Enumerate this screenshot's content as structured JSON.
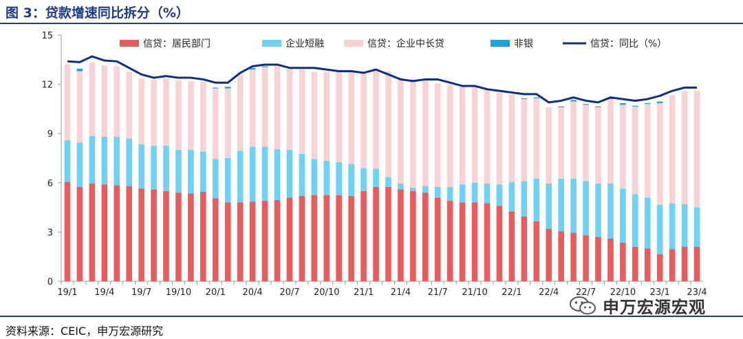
{
  "title": "图 3：贷款增速同比拆分（%）",
  "source": "资料来源：CEIC，申万宏源研究",
  "watermark": "申万宏源宏观",
  "colors": {
    "residential": "#e85c5c",
    "corporate_short": "#6dd2f5",
    "corporate_medium_long": "#f9d3d3",
    "non_bank": "#1aa3e0",
    "yoy_line": "#0b2e8a",
    "brand": "#1b3a8c"
  },
  "chart_data": {
    "type": "bar",
    "stacked": true,
    "title": "贷款增速同比拆分（%）",
    "ylim": [
      0,
      15
    ],
    "yticks": [
      0,
      3,
      6,
      9,
      12,
      15
    ],
    "legend_position": "top",
    "x_tick_labels": [
      "19/1",
      "19/4",
      "19/7",
      "19/10",
      "20/1",
      "20/4",
      "20/7",
      "20/10",
      "21/1",
      "21/4",
      "21/7",
      "21/10",
      "22/1",
      "22/4",
      "22/7",
      "22/10",
      "23/1",
      "23/4"
    ],
    "categories": [
      "19/1",
      "19/2",
      "19/3",
      "19/4",
      "19/5",
      "19/6",
      "19/7",
      "19/8",
      "19/9",
      "19/10",
      "19/11",
      "19/12",
      "20/1",
      "20/2",
      "20/3",
      "20/4",
      "20/5",
      "20/6",
      "20/7",
      "20/8",
      "20/9",
      "20/10",
      "20/11",
      "20/12",
      "21/1",
      "21/2",
      "21/3",
      "21/4",
      "21/5",
      "21/6",
      "21/7",
      "21/8",
      "21/9",
      "21/10",
      "21/11",
      "21/12",
      "22/1",
      "22/2",
      "22/3",
      "22/4",
      "22/5",
      "22/6",
      "22/7",
      "22/8",
      "22/9",
      "22/10",
      "22/11",
      "22/12",
      "23/1",
      "23/2",
      "23/3",
      "23/4"
    ],
    "series": [
      {
        "name": "信贷：居民部门",
        "values": [
          6.05,
          5.75,
          5.95,
          5.9,
          5.85,
          5.8,
          5.65,
          5.6,
          5.5,
          5.4,
          5.35,
          5.45,
          5.05,
          4.8,
          4.8,
          4.85,
          4.9,
          4.95,
          5.1,
          5.2,
          5.25,
          5.25,
          5.25,
          5.2,
          5.5,
          5.75,
          5.75,
          5.6,
          5.5,
          5.4,
          5.1,
          4.9,
          4.8,
          4.8,
          4.75,
          4.6,
          4.25,
          3.95,
          3.65,
          3.2,
          3.05,
          2.95,
          2.8,
          2.7,
          2.6,
          2.35,
          2.1,
          2.0,
          1.65,
          1.95,
          2.1,
          2.1
        ]
      },
      {
        "name": "企业短融",
        "values": [
          2.55,
          2.7,
          2.9,
          2.9,
          2.95,
          2.9,
          2.7,
          2.65,
          2.75,
          2.6,
          2.65,
          2.45,
          2.4,
          2.7,
          3.15,
          3.35,
          3.3,
          3.1,
          2.9,
          2.55,
          2.2,
          2.1,
          2.0,
          1.95,
          1.4,
          1.1,
          0.6,
          0.35,
          0.2,
          0.4,
          0.65,
          0.85,
          1.1,
          1.2,
          1.2,
          1.3,
          1.8,
          2.15,
          2.6,
          2.75,
          3.2,
          3.3,
          3.3,
          3.25,
          3.35,
          3.3,
          3.2,
          3.1,
          3.0,
          2.8,
          2.6,
          2.4
        ]
      },
      {
        "name": "信贷：企业中长贷",
        "values": [
          4.6,
          4.35,
          4.5,
          4.35,
          4.3,
          4.05,
          4.0,
          4.05,
          4.1,
          4.25,
          4.2,
          4.25,
          4.3,
          4.25,
          4.75,
          4.7,
          4.85,
          5.1,
          4.95,
          5.15,
          5.3,
          5.4,
          5.55,
          5.6,
          5.75,
          6.1,
          6.45,
          6.45,
          6.6,
          6.5,
          6.3,
          6.2,
          6.0,
          5.9,
          5.7,
          5.6,
          5.35,
          5.0,
          4.9,
          4.65,
          4.35,
          4.7,
          4.65,
          4.65,
          5.15,
          5.1,
          5.35,
          5.7,
          6.2,
          6.6,
          6.9,
          7.1
        ]
      },
      {
        "name": "非银",
        "values": [
          0.0,
          0.15,
          0.0,
          0.0,
          0.0,
          0.0,
          0.0,
          0.0,
          0.0,
          0.0,
          0.0,
          0.0,
          0.05,
          0.1,
          0.0,
          0.1,
          0.05,
          0.0,
          0.0,
          0.0,
          0.0,
          0.0,
          0.0,
          0.0,
          0.0,
          0.0,
          0.0,
          0.0,
          0.0,
          0.0,
          0.0,
          0.0,
          0.0,
          0.0,
          0.0,
          0.0,
          0.0,
          0.05,
          0.05,
          0.0,
          0.05,
          0.1,
          0.05,
          0.05,
          0.05,
          0.1,
          0.05,
          0.05,
          0.1,
          0.0,
          0.0,
          0.0
        ]
      }
    ],
    "line": {
      "name": "信贷：同比（%）",
      "values": [
        13.4,
        13.35,
        13.7,
        13.45,
        13.4,
        13.0,
        12.6,
        12.4,
        12.5,
        12.4,
        12.4,
        12.3,
        12.1,
        12.1,
        12.7,
        13.1,
        13.2,
        13.2,
        13.0,
        13.0,
        13.0,
        12.9,
        12.8,
        12.8,
        12.7,
        12.9,
        12.6,
        12.3,
        12.2,
        12.3,
        12.3,
        12.1,
        11.9,
        11.9,
        11.7,
        11.6,
        11.5,
        11.4,
        11.4,
        10.9,
        11.0,
        11.2,
        11.0,
        10.9,
        11.2,
        11.1,
        11.0,
        11.1,
        11.3,
        11.6,
        11.8,
        11.8
      ]
    }
  }
}
